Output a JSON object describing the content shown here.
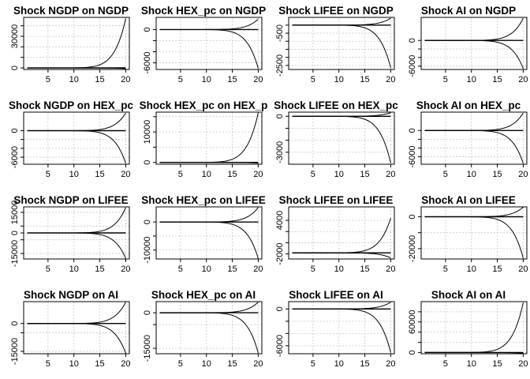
{
  "chart_data": [
    {
      "type": "line",
      "title": "Shock NGDP on NGDP",
      "x_ticks": [
        5,
        10,
        15,
        20
      ],
      "y_ticks": [
        {
          "v": 0,
          "label": "0"
        },
        {
          "v": 10000,
          "label": ""
        },
        {
          "v": 20000,
          "label": ""
        },
        {
          "v": 30000,
          "label": "30000"
        },
        {
          "v": 40000,
          "label": ""
        }
      ],
      "ylim": [
        -1500,
        48000
      ],
      "grid": true,
      "shape": "up",
      "amp": 47000,
      "base": 0
    },
    {
      "type": "line",
      "title": "Shock HEX_pc on NGDP",
      "x_ticks": [
        5,
        10,
        15,
        20
      ],
      "y_ticks": [
        {
          "v": 0,
          "label": "0"
        },
        {
          "v": -2000,
          "label": ""
        },
        {
          "v": -4000,
          "label": ""
        },
        {
          "v": -6000,
          "label": "-6000"
        }
      ],
      "ylim": [
        -7200,
        2200
      ],
      "grid": true,
      "shape": "fan",
      "amp_up": 1900,
      "amp_down": 7000,
      "base": 0
    },
    {
      "type": "line",
      "title": "Shock LIFEE on NGDP",
      "x_ticks": [
        5,
        10,
        15,
        20
      ],
      "y_ticks": [
        {
          "v": 0,
          "label": ""
        },
        {
          "v": -500,
          "label": "-500"
        },
        {
          "v": -1000,
          "label": ""
        },
        {
          "v": -1500,
          "label": ""
        },
        {
          "v": -2000,
          "label": ""
        },
        {
          "v": -2500,
          "label": "-2500"
        }
      ],
      "ylim": [
        -2750,
        480
      ],
      "grid": true,
      "shape": "fan",
      "amp_up": 430,
      "amp_down": 2650,
      "base": 0
    },
    {
      "type": "line",
      "title": "Shock AI on NGDP",
      "x_ticks": [
        5,
        10,
        15,
        20
      ],
      "y_ticks": [
        {
          "v": 0,
          "label": "0"
        },
        {
          "v": -2000,
          "label": ""
        },
        {
          "v": -4000,
          "label": ""
        },
        {
          "v": -6000,
          "label": "-6000"
        }
      ],
      "ylim": [
        -6800,
        5400
      ],
      "grid": true,
      "shape": "fan",
      "amp_up": 5200,
      "amp_down": 6600,
      "base": 0
    },
    {
      "type": "line",
      "title": "Shock NGDP on HEX_pc",
      "x_ticks": [
        5,
        10,
        15,
        20
      ],
      "y_ticks": [
        {
          "v": 0,
          "label": "0"
        },
        {
          "v": -2000,
          "label": ""
        },
        {
          "v": -4000,
          "label": ""
        },
        {
          "v": -6000,
          "label": "-6000"
        }
      ],
      "ylim": [
        -7600,
        4200
      ],
      "grid": true,
      "shape": "fan",
      "amp_up": 4000,
      "amp_down": 7400,
      "base": 0
    },
    {
      "type": "line",
      "title": "Shock HEX_pc on HEX_p",
      "x_ticks": [
        5,
        10,
        15,
        20
      ],
      "y_ticks": [
        {
          "v": 0,
          "label": "0"
        },
        {
          "v": 5000,
          "label": ""
        },
        {
          "v": 10000,
          "label": "10000"
        },
        {
          "v": 15000,
          "label": ""
        }
      ],
      "ylim": [
        -600,
        16500
      ],
      "grid": true,
      "shape": "up",
      "amp": 16300,
      "base": 0
    },
    {
      "type": "line",
      "title": "Shock LIFEE on HEX_pc",
      "x_ticks": [
        5,
        10,
        15,
        20
      ],
      "y_ticks": [
        {
          "v": 0,
          "label": "0"
        },
        {
          "v": -1000,
          "label": ""
        },
        {
          "v": -2000,
          "label": ""
        },
        {
          "v": -3000,
          "label": "-3000"
        }
      ],
      "ylim": [
        -4000,
        350
      ],
      "grid": true,
      "shape": "fan",
      "amp_up": 300,
      "amp_down": 3900,
      "base": 0
    },
    {
      "type": "line",
      "title": "Shock AI on HEX_pc",
      "x_ticks": [
        5,
        10,
        15,
        20
      ],
      "y_ticks": [
        {
          "v": 0,
          "label": "0"
        },
        {
          "v": -2000,
          "label": ""
        },
        {
          "v": -4000,
          "label": ""
        },
        {
          "v": -6000,
          "label": "-6000"
        }
      ],
      "ylim": [
        -7700,
        4200
      ],
      "grid": true,
      "shape": "fan",
      "amp_up": 4000,
      "amp_down": 7500,
      "base": 0
    },
    {
      "type": "line",
      "title": "Shock NGDP on LIFEE",
      "x_ticks": [
        5,
        10,
        15,
        20
      ],
      "y_ticks": [
        {
          "v": 15000,
          "label": "15000"
        },
        {
          "v": 5000,
          "label": ""
        },
        {
          "v": 0,
          "label": "0"
        },
        {
          "v": -5000,
          "label": ""
        },
        {
          "v": -15000,
          "label": "-15000"
        }
      ],
      "ylim": [
        -19000,
        19000
      ],
      "grid": true,
      "shape": "fan",
      "amp_up": 18500,
      "amp_down": 18500,
      "base": 0
    },
    {
      "type": "line",
      "title": "Shock HEX_pc on LIFEE",
      "x_ticks": [
        5,
        10,
        15,
        20
      ],
      "y_ticks": [
        {
          "v": 0,
          "label": "0"
        },
        {
          "v": -5000,
          "label": ""
        },
        {
          "v": -10000,
          "label": "-10000"
        }
      ],
      "ylim": [
        -13200,
        5400
      ],
      "grid": true,
      "shape": "fan",
      "amp_up": 5200,
      "amp_down": 13000,
      "base": 0
    },
    {
      "type": "line",
      "title": "Shock LIFEE on LIFEE",
      "x_ticks": [
        5,
        10,
        15,
        20
      ],
      "y_ticks": [
        {
          "v": 4000,
          "label": "4000"
        },
        {
          "v": 2000,
          "label": ""
        },
        {
          "v": 0,
          "label": ""
        },
        {
          "v": -2000,
          "label": "-2000"
        }
      ],
      "ylim": [
        -2900,
        6400
      ],
      "grid": true,
      "shape": "fan",
      "amp_up": 6200,
      "amp_down": 900,
      "base": -1800
    },
    {
      "type": "line",
      "title": "Shock AI on LIFEE",
      "x_ticks": [
        5,
        10,
        15,
        20
      ],
      "y_ticks": [
        {
          "v": 0,
          "label": "0"
        },
        {
          "v": -10000,
          "label": ""
        },
        {
          "v": -20000,
          "label": "-20000"
        }
      ],
      "ylim": [
        -26500,
        6200
      ],
      "grid": true,
      "shape": "fan",
      "amp_up": 6000,
      "amp_down": 26000,
      "base": 0
    },
    {
      "type": "line",
      "title": "Shock NGDP on AI",
      "x_ticks": [
        5,
        10,
        15,
        20
      ],
      "y_ticks": [
        {
          "v": 0,
          "label": "0"
        },
        {
          "v": -5000,
          "label": ""
        },
        {
          "v": -15000,
          "label": "-15000"
        }
      ],
      "ylim": [
        -16300,
        11800
      ],
      "grid": true,
      "shape": "fan",
      "amp_up": 11500,
      "amp_down": 16000,
      "base": 0
    },
    {
      "type": "line",
      "title": "Shock HEX_pc on AI",
      "x_ticks": [
        5,
        10,
        15,
        20
      ],
      "y_ticks": [
        {
          "v": 0,
          "label": "0"
        },
        {
          "v": -5000,
          "label": ""
        },
        {
          "v": -15000,
          "label": "-15000"
        }
      ],
      "ylim": [
        -17300,
        4700
      ],
      "grid": true,
      "shape": "fan",
      "amp_up": 4500,
      "amp_down": 17000,
      "base": 0
    },
    {
      "type": "line",
      "title": "Shock LIFEE on AI",
      "x_ticks": [
        5,
        10,
        15,
        20
      ],
      "y_ticks": [
        {
          "v": 0,
          "label": "0"
        },
        {
          "v": -2000,
          "label": ""
        },
        {
          "v": -4000,
          "label": ""
        },
        {
          "v": -6000,
          "label": "-6000"
        }
      ],
      "ylim": [
        -7300,
        1200
      ],
      "grid": true,
      "shape": "fan",
      "amp_up": 1100,
      "amp_down": 7100,
      "base": 0
    },
    {
      "type": "line",
      "title": "Shock AI on AI",
      "x_ticks": [
        5,
        10,
        15,
        20
      ],
      "y_ticks": [
        {
          "v": 0,
          "label": "0"
        },
        {
          "v": 20000,
          "label": ""
        },
        {
          "v": 40000,
          "label": ""
        },
        {
          "v": 60000,
          "label": "60000"
        },
        {
          "v": 80000,
          "label": ""
        }
      ],
      "ylim": [
        -2500,
        100000
      ],
      "grid": true,
      "shape": "up",
      "amp": 98000,
      "base": 0
    }
  ]
}
